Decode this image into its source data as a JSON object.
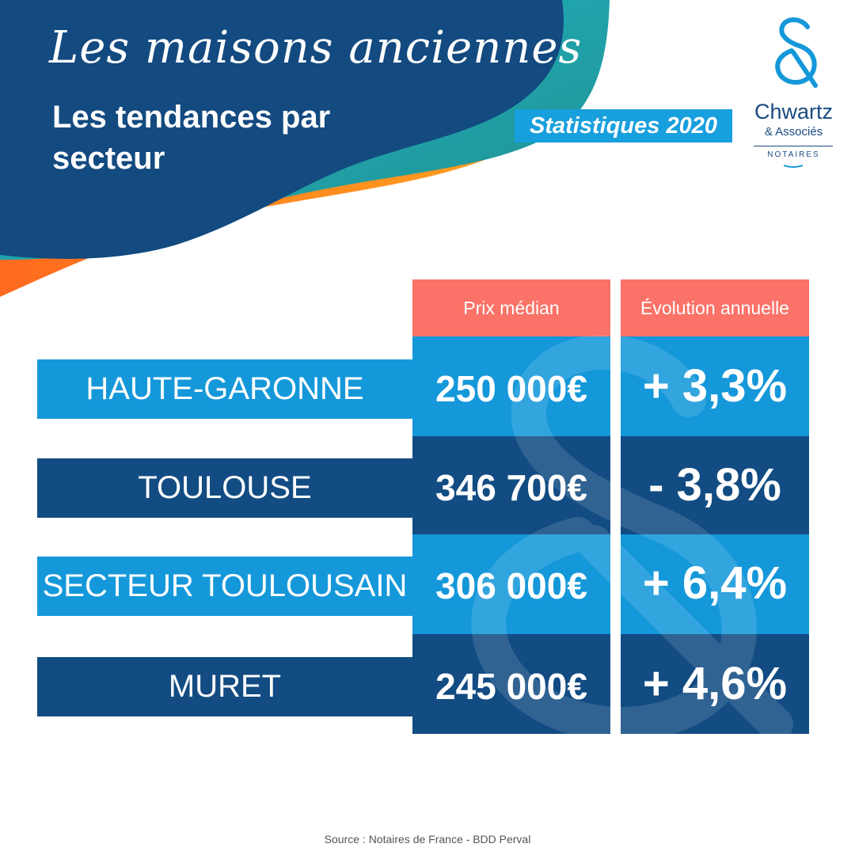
{
  "header": {
    "title": "Les maisons anciennes",
    "subtitle": "Les tendances par secteur",
    "badge": "Statistiques 2020"
  },
  "logo": {
    "name": "Chwartz",
    "associates": "& Associés",
    "tagline": "NOTAIRES"
  },
  "colors": {
    "dark_blue": "#124c82",
    "light_blue": "#1598da",
    "salmon": "#fb7268",
    "orange": "#ff8a1a"
  },
  "chart_data": {
    "type": "table",
    "columns": [
      "Prix médian",
      "Évolution annuelle"
    ],
    "rows": [
      {
        "label": "HAUTE-GARONNE",
        "price": "250 000€",
        "evolution": "+ 3,3%"
      },
      {
        "label": "TOULOUSE",
        "price": "346 700€",
        "evolution": "- 3,8%"
      },
      {
        "label": "SECTEUR TOULOUSAIN",
        "price": "306 000€",
        "evolution": "+ 6,4%"
      },
      {
        "label": "MURET",
        "price": "245 000€",
        "evolution": "+ 4,6%"
      }
    ]
  },
  "footer": {
    "source": "Source : Notaires de France - BDD Perval"
  }
}
